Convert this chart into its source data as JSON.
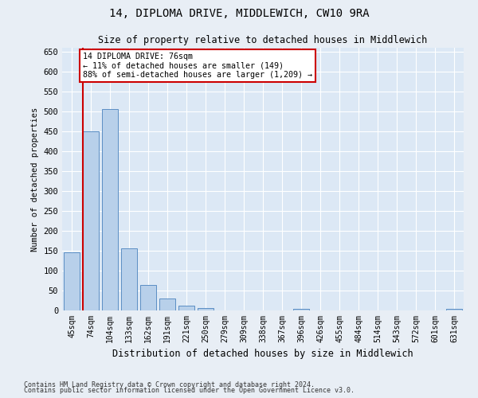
{
  "title": "14, DIPLOMA DRIVE, MIDDLEWICH, CW10 9RA",
  "subtitle": "Size of property relative to detached houses in Middlewich",
  "xlabel": "Distribution of detached houses by size in Middlewich",
  "ylabel": "Number of detached properties",
  "bar_labels": [
    "45sqm",
    "74sqm",
    "104sqm",
    "133sqm",
    "162sqm",
    "191sqm",
    "221sqm",
    "250sqm",
    "279sqm",
    "309sqm",
    "338sqm",
    "367sqm",
    "396sqm",
    "426sqm",
    "455sqm",
    "484sqm",
    "514sqm",
    "543sqm",
    "572sqm",
    "601sqm",
    "631sqm"
  ],
  "bar_values": [
    147,
    450,
    507,
    157,
    65,
    30,
    13,
    6,
    0,
    0,
    0,
    0,
    5,
    0,
    0,
    0,
    0,
    0,
    0,
    0,
    5
  ],
  "bar_color": "#b8d0ea",
  "bar_edge_color": "#5b8ec4",
  "vline_color": "#cc0000",
  "annotation_text": "14 DIPLOMA DRIVE: 76sqm\n← 11% of detached houses are smaller (149)\n88% of semi-detached houses are larger (1,209) →",
  "annotation_box_facecolor": "#ffffff",
  "annotation_box_edgecolor": "#cc0000",
  "ylim": [
    0,
    660
  ],
  "yticks": [
    0,
    50,
    100,
    150,
    200,
    250,
    300,
    350,
    400,
    450,
    500,
    550,
    600,
    650
  ],
  "footer_line1": "Contains HM Land Registry data © Crown copyright and database right 2024.",
  "footer_line2": "Contains public sector information licensed under the Open Government Licence v3.0.",
  "bg_color": "#e8eef5",
  "plot_bg_color": "#dce8f5"
}
